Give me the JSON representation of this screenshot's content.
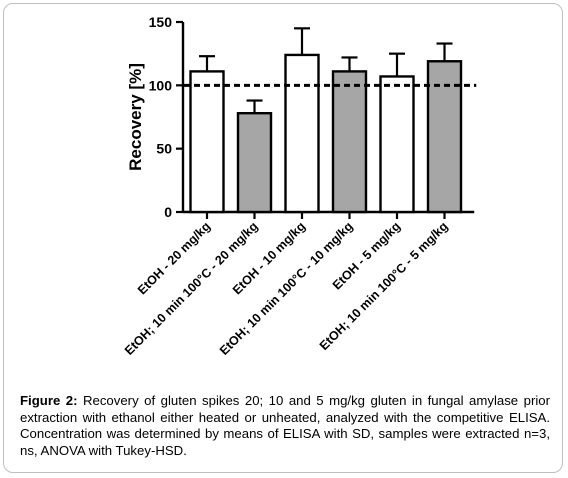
{
  "caption": {
    "label": "Figure 2:",
    "text": " Recovery of gluten spikes 20; 10 and 5 mg/kg gluten in fungal amylase prior extraction with ethanol either heated or unheated, analyzed with the competitive ELISA. Concentration was determined by means of ELISA with SD, samples were extracted n=3, ns, ANOVA with Tukey-HSD."
  },
  "chart_data": {
    "type": "bar",
    "ylabel": "Recovery [%]",
    "ylim": [
      0,
      150
    ],
    "yticks": [
      0,
      50,
      100,
      150
    ],
    "reference_line": 100,
    "grid": false,
    "categories": [
      "EtOH - 20 mg/kg",
      "EtOH; 10 min 100°C - 20 mg/kg",
      "EtOH - 10 mg/kg",
      "EtOH; 10 min 100°C - 10 mg/kg",
      "EtOH - 5 mg/kg",
      "EtOH; 10 min 100°C - 5 mg/kg"
    ],
    "values": [
      111,
      78,
      124,
      111,
      107,
      119
    ],
    "errors": [
      12,
      10,
      21,
      11,
      18,
      14
    ],
    "colors": [
      "#ffffff",
      "#a6a6a6",
      "#ffffff",
      "#a6a6a6",
      "#ffffff",
      "#a6a6a6"
    ]
  }
}
